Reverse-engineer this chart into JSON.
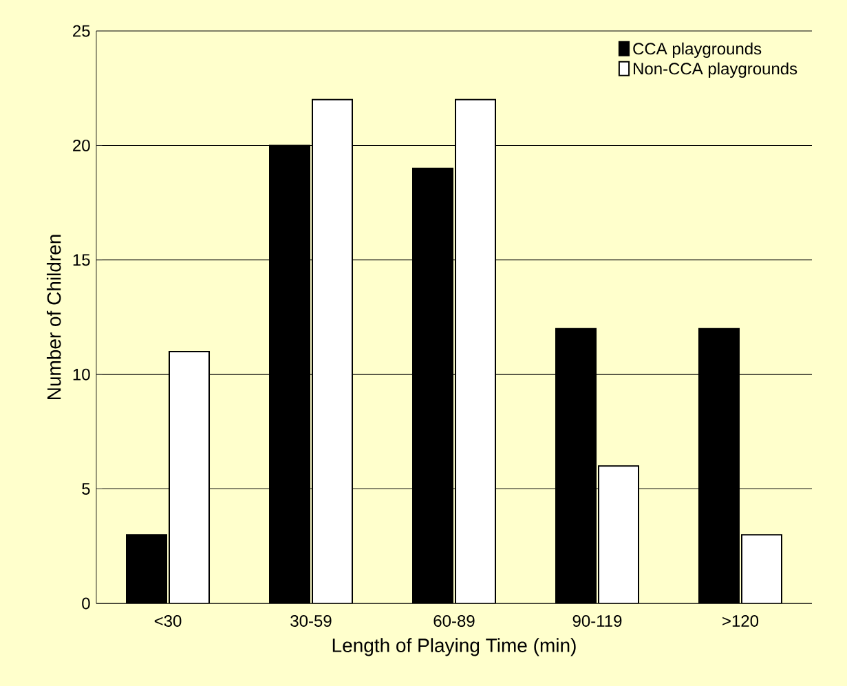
{
  "chart_data": {
    "type": "bar",
    "xlabel": "Length of Playing Time (min)",
    "ylabel": "Number of Children",
    "categories": [
      "<30",
      "30-59",
      "60-89",
      "90-119",
      ">120"
    ],
    "series": [
      {
        "name": "CCA playgrounds",
        "color": "#000000",
        "values": [
          3,
          20,
          19,
          12,
          12
        ]
      },
      {
        "name": "Non-CCA playgrounds",
        "color": "#ffffff",
        "values": [
          11,
          22,
          22,
          6,
          3
        ]
      }
    ],
    "ylim": [
      0,
      25
    ],
    "yticks": [
      0,
      5,
      10,
      15,
      20,
      25
    ],
    "grid": "y",
    "legend": "top right"
  }
}
